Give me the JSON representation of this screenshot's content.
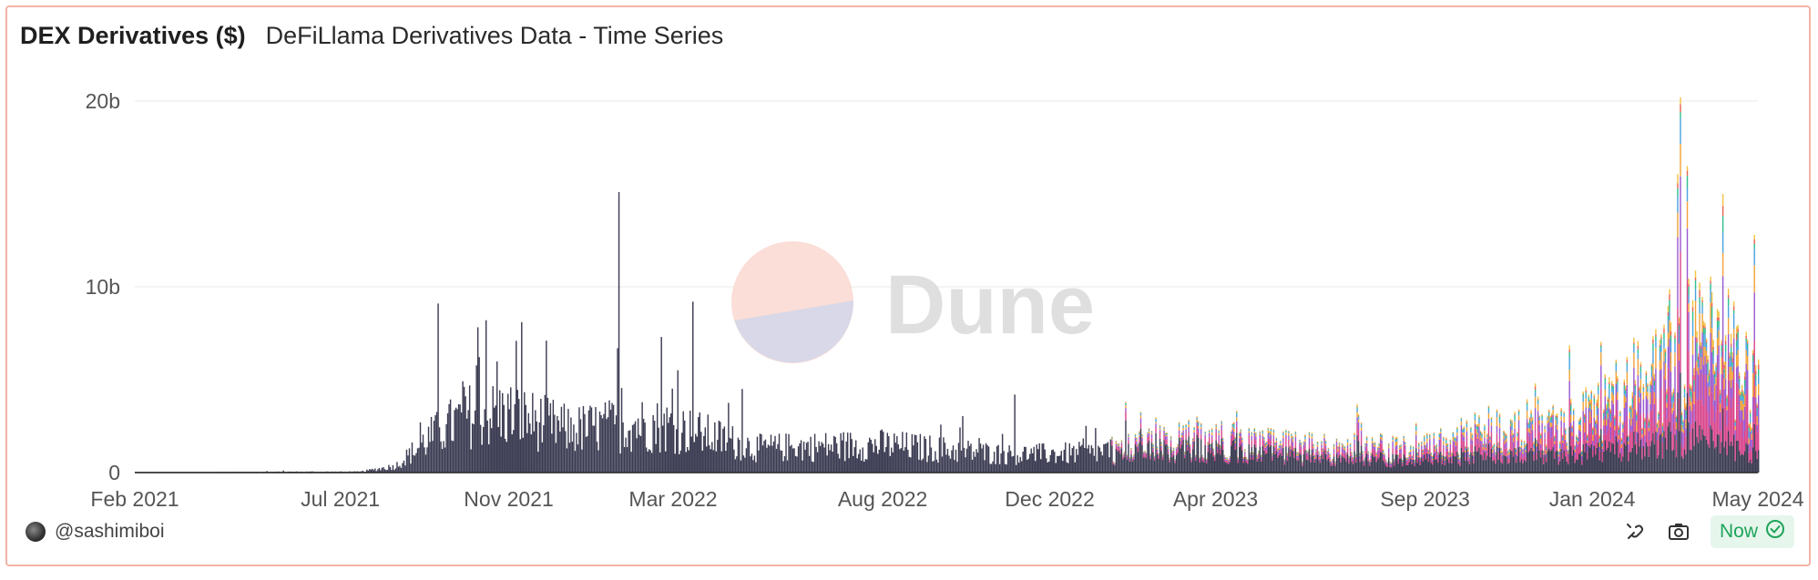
{
  "header": {
    "title": "DEX Derivatives ($)",
    "subtitle": "DeFiLlama Derivatives Data - Time Series"
  },
  "watermark": {
    "text": "Dune"
  },
  "footer": {
    "author": "@sashimiboi",
    "status": "Now",
    "icons": [
      "embed-icon",
      "camera-icon",
      "check-circle-icon"
    ]
  },
  "colors": {
    "border": "#f3b3a6",
    "primary_series": "#3b3b52",
    "status_green": "#1fa45a",
    "accent_series": [
      "#d9468c",
      "#9b59d0",
      "#f2a33a",
      "#4aa3df",
      "#2fbf8f",
      "#e86452",
      "#f5c342"
    ]
  },
  "chart_data": {
    "type": "bar",
    "stacked": true,
    "title": "DEX Derivatives ($)",
    "subtitle": "DeFiLlama Derivatives Data - Time Series",
    "xlabel": "",
    "ylabel": "",
    "x_ticks": [
      "Feb 2021",
      "Jul 2021",
      "Nov 2021",
      "Mar 2022",
      "Aug 2022",
      "Dec 2022",
      "Apr 2023",
      "Sep 2023",
      "Jan 2024",
      "May 2024"
    ],
    "y_ticks": [
      "0",
      "10b",
      "20b"
    ],
    "ylim": [
      0,
      20000000000
    ],
    "xlim": [
      "2021-02-01",
      "2024-05-01"
    ],
    "grid": true,
    "unit": "USD",
    "daily_total_anchors": [
      [
        "2021-02-01",
        0
      ],
      [
        "2021-06-01",
        0.05
      ],
      [
        "2021-07-15",
        0.05
      ],
      [
        "2021-08-10",
        0.4
      ],
      [
        "2021-09-05",
        2.2
      ],
      [
        "2021-10-01",
        3.5
      ],
      [
        "2021-11-01",
        3.6
      ],
      [
        "2021-12-15",
        2.6
      ],
      [
        "2022-02-01",
        3.0
      ],
      [
        "2022-03-01",
        2.8
      ],
      [
        "2022-05-01",
        1.5
      ],
      [
        "2022-08-01",
        1.7
      ],
      [
        "2022-11-01",
        1.1
      ],
      [
        "2023-01-01",
        1.2
      ],
      [
        "2023-03-15",
        2.2
      ],
      [
        "2023-06-01",
        1.6
      ],
      [
        "2023-09-01",
        1.5
      ],
      [
        "2023-11-01",
        3.0
      ],
      [
        "2024-01-01",
        3.3
      ],
      [
        "2024-02-15",
        6.5
      ],
      [
        "2024-03-15",
        8.5
      ],
      [
        "2024-04-15",
        7.0
      ],
      [
        "2024-05-01",
        6.5
      ]
    ],
    "spikes": [
      [
        "2021-09-10",
        9.1
      ],
      [
        "2021-10-15",
        8.2
      ],
      [
        "2021-11-10",
        8.1
      ],
      [
        "2022-01-20",
        15.1
      ],
      [
        "2022-02-20",
        7.3
      ],
      [
        "2022-03-15",
        9.2
      ],
      [
        "2022-04-20",
        4.5
      ],
      [
        "2022-11-05",
        4.2
      ],
      [
        "2023-11-20",
        4.8
      ],
      [
        "2024-03-05",
        20.2
      ],
      [
        "2024-03-10",
        16.5
      ],
      [
        "2024-04-05",
        15.0
      ],
      [
        "2024-04-28",
        12.8
      ]
    ],
    "spike_unit": "billions USD",
    "series_note": "Multiple stacked protocol series appear from 2023 onward; dominant dark series throughout."
  }
}
